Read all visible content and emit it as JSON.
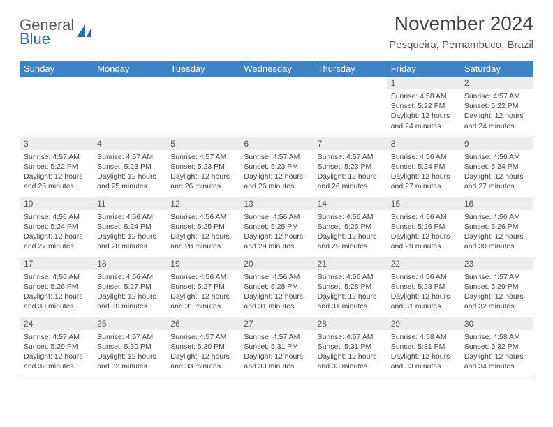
{
  "logo": {
    "word1": "General",
    "word2": "Blue"
  },
  "title": "November 2024",
  "location": "Pesqueira, Pernambuco, Brazil",
  "header_bg": "#3d84c6",
  "daynum_bg": "#ededed",
  "weekdays": [
    "Sunday",
    "Monday",
    "Tuesday",
    "Wednesday",
    "Thursday",
    "Friday",
    "Saturday"
  ],
  "days": [
    {
      "n": "",
      "sr": "",
      "ss": "",
      "dl": ""
    },
    {
      "n": "",
      "sr": "",
      "ss": "",
      "dl": ""
    },
    {
      "n": "",
      "sr": "",
      "ss": "",
      "dl": ""
    },
    {
      "n": "",
      "sr": "",
      "ss": "",
      "dl": ""
    },
    {
      "n": "",
      "sr": "",
      "ss": "",
      "dl": ""
    },
    {
      "n": "1",
      "sr": "Sunrise: 4:58 AM",
      "ss": "Sunset: 5:22 PM",
      "dl": "Daylight: 12 hours and 24 minutes."
    },
    {
      "n": "2",
      "sr": "Sunrise: 4:57 AM",
      "ss": "Sunset: 5:22 PM",
      "dl": "Daylight: 12 hours and 24 minutes."
    },
    {
      "n": "3",
      "sr": "Sunrise: 4:57 AM",
      "ss": "Sunset: 5:22 PM",
      "dl": "Daylight: 12 hours and 25 minutes."
    },
    {
      "n": "4",
      "sr": "Sunrise: 4:57 AM",
      "ss": "Sunset: 5:23 PM",
      "dl": "Daylight: 12 hours and 25 minutes."
    },
    {
      "n": "5",
      "sr": "Sunrise: 4:57 AM",
      "ss": "Sunset: 5:23 PM",
      "dl": "Daylight: 12 hours and 26 minutes."
    },
    {
      "n": "6",
      "sr": "Sunrise: 4:57 AM",
      "ss": "Sunset: 5:23 PM",
      "dl": "Daylight: 12 hours and 26 minutes."
    },
    {
      "n": "7",
      "sr": "Sunrise: 4:57 AM",
      "ss": "Sunset: 5:23 PM",
      "dl": "Daylight: 12 hours and 26 minutes."
    },
    {
      "n": "8",
      "sr": "Sunrise: 4:56 AM",
      "ss": "Sunset: 5:24 PM",
      "dl": "Daylight: 12 hours and 27 minutes."
    },
    {
      "n": "9",
      "sr": "Sunrise: 4:56 AM",
      "ss": "Sunset: 5:24 PM",
      "dl": "Daylight: 12 hours and 27 minutes."
    },
    {
      "n": "10",
      "sr": "Sunrise: 4:56 AM",
      "ss": "Sunset: 5:24 PM",
      "dl": "Daylight: 12 hours and 27 minutes."
    },
    {
      "n": "11",
      "sr": "Sunrise: 4:56 AM",
      "ss": "Sunset: 5:24 PM",
      "dl": "Daylight: 12 hours and 28 minutes."
    },
    {
      "n": "12",
      "sr": "Sunrise: 4:56 AM",
      "ss": "Sunset: 5:25 PM",
      "dl": "Daylight: 12 hours and 28 minutes."
    },
    {
      "n": "13",
      "sr": "Sunrise: 4:56 AM",
      "ss": "Sunset: 5:25 PM",
      "dl": "Daylight: 12 hours and 29 minutes."
    },
    {
      "n": "14",
      "sr": "Sunrise: 4:56 AM",
      "ss": "Sunset: 5:25 PM",
      "dl": "Daylight: 12 hours and 29 minutes."
    },
    {
      "n": "15",
      "sr": "Sunrise: 4:56 AM",
      "ss": "Sunset: 5:26 PM",
      "dl": "Daylight: 12 hours and 29 minutes."
    },
    {
      "n": "16",
      "sr": "Sunrise: 4:56 AM",
      "ss": "Sunset: 5:26 PM",
      "dl": "Daylight: 12 hours and 30 minutes."
    },
    {
      "n": "17",
      "sr": "Sunrise: 4:56 AM",
      "ss": "Sunset: 5:26 PM",
      "dl": "Daylight: 12 hours and 30 minutes."
    },
    {
      "n": "18",
      "sr": "Sunrise: 4:56 AM",
      "ss": "Sunset: 5:27 PM",
      "dl": "Daylight: 12 hours and 30 minutes."
    },
    {
      "n": "19",
      "sr": "Sunrise: 4:56 AM",
      "ss": "Sunset: 5:27 PM",
      "dl": "Daylight: 12 hours and 31 minutes."
    },
    {
      "n": "20",
      "sr": "Sunrise: 4:56 AM",
      "ss": "Sunset: 5:28 PM",
      "dl": "Daylight: 12 hours and 31 minutes."
    },
    {
      "n": "21",
      "sr": "Sunrise: 4:56 AM",
      "ss": "Sunset: 5:28 PM",
      "dl": "Daylight: 12 hours and 31 minutes."
    },
    {
      "n": "22",
      "sr": "Sunrise: 4:56 AM",
      "ss": "Sunset: 5:28 PM",
      "dl": "Daylight: 12 hours and 31 minutes."
    },
    {
      "n": "23",
      "sr": "Sunrise: 4:57 AM",
      "ss": "Sunset: 5:29 PM",
      "dl": "Daylight: 12 hours and 32 minutes."
    },
    {
      "n": "24",
      "sr": "Sunrise: 4:57 AM",
      "ss": "Sunset: 5:29 PM",
      "dl": "Daylight: 12 hours and 32 minutes."
    },
    {
      "n": "25",
      "sr": "Sunrise: 4:57 AM",
      "ss": "Sunset: 5:30 PM",
      "dl": "Daylight: 12 hours and 32 minutes."
    },
    {
      "n": "26",
      "sr": "Sunrise: 4:57 AM",
      "ss": "Sunset: 5:30 PM",
      "dl": "Daylight: 12 hours and 33 minutes."
    },
    {
      "n": "27",
      "sr": "Sunrise: 4:57 AM",
      "ss": "Sunset: 5:31 PM",
      "dl": "Daylight: 12 hours and 33 minutes."
    },
    {
      "n": "28",
      "sr": "Sunrise: 4:57 AM",
      "ss": "Sunset: 5:31 PM",
      "dl": "Daylight: 12 hours and 33 minutes."
    },
    {
      "n": "29",
      "sr": "Sunrise: 4:58 AM",
      "ss": "Sunset: 5:31 PM",
      "dl": "Daylight: 12 hours and 33 minutes."
    },
    {
      "n": "30",
      "sr": "Sunrise: 4:58 AM",
      "ss": "Sunset: 5:32 PM",
      "dl": "Daylight: 12 hours and 34 minutes."
    }
  ]
}
